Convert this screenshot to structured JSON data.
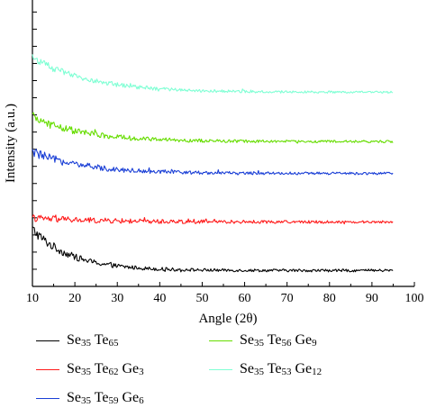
{
  "chart_data": {
    "type": "line",
    "xlabel": "Angle (2θ)",
    "ylabel": "Intensity (a.u.)",
    "xlim": [
      10,
      100
    ],
    "x_ticks": [
      "10",
      "20",
      "30",
      "40",
      "50",
      "60",
      "70",
      "80",
      "90",
      "100"
    ],
    "y_ticks_labeled": false,
    "y_minor_tick_count": 16,
    "y_scale_note": "relative intensity with vertical offsets; y axis has no numeric labels",
    "x_range_data": [
      10,
      95
    ],
    "series": [
      {
        "name": "Se35Te65",
        "label_parts": [
          [
            "Se",
            "35"
          ],
          [
            "Te",
            "65"
          ]
        ],
        "color": "#000000",
        "baseline": 1.0,
        "decay_amp": 2.6,
        "decay_len": 9,
        "noise": 0.35,
        "noise_decay": 12
      },
      {
        "name": "Se35Te62Ge3",
        "label_parts": [
          [
            "Se",
            "35"
          ],
          [
            "Te",
            "62"
          ],
          [
            "Ge",
            "3"
          ]
        ],
        "color": "#ff1a1a",
        "baseline": 4.05,
        "decay_amp": 0.25,
        "decay_len": 15,
        "noise": 0.22,
        "noise_decay": 40
      },
      {
        "name": "Se35Te59Ge6",
        "label_parts": [
          [
            "Se",
            "35"
          ],
          [
            "Te",
            "59"
          ],
          [
            "Ge",
            "6"
          ]
        ],
        "color": "#1a3fd6",
        "baseline": 7.1,
        "decay_amp": 1.35,
        "decay_len": 12,
        "noise": 0.3,
        "noise_decay": 20
      },
      {
        "name": "Se35Te56Ge9",
        "label_parts": [
          [
            "Se",
            "35"
          ],
          [
            "Te",
            "56"
          ],
          [
            "Ge",
            "9"
          ]
        ],
        "color": "#66dd00",
        "baseline": 9.1,
        "decay_amp": 1.55,
        "decay_len": 12,
        "noise": 0.3,
        "noise_decay": 20
      },
      {
        "name": "Se35Te53Ge12",
        "label_parts": [
          [
            "Se",
            "35"
          ],
          [
            "Te",
            "53"
          ],
          [
            "Ge",
            "12"
          ]
        ],
        "color": "#7fffd4",
        "baseline": 12.2,
        "decay_amp": 2.2,
        "decay_len": 13,
        "noise": 0.25,
        "noise_decay": 22
      }
    ],
    "ylim": [
      0,
      18
    ],
    "grid": false,
    "legend_placement": "bottom"
  }
}
